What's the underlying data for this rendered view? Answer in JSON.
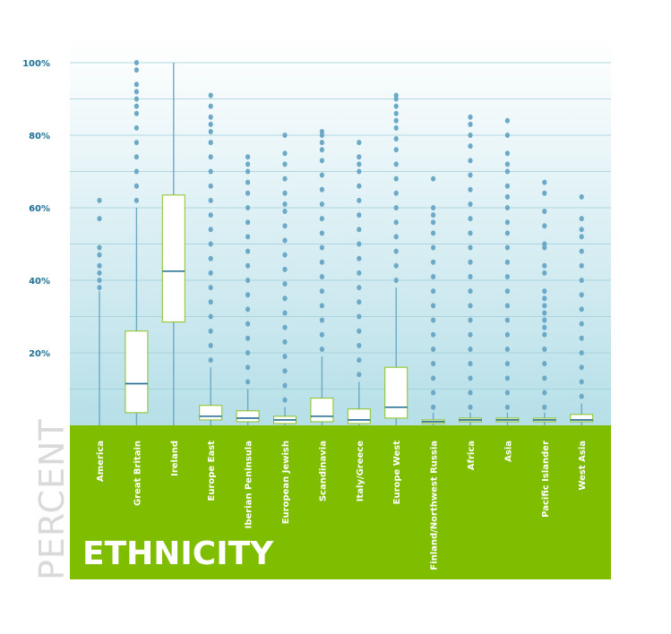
{
  "chart_data": {
    "type": "box",
    "xlabel": "ETHNICITY",
    "ylabel": "PERCENT",
    "ylim": [
      0,
      100
    ],
    "yticks": [
      20,
      40,
      60,
      80,
      100
    ],
    "ytick_labels": [
      "20%",
      "40%",
      "60%",
      "80%",
      "100%"
    ],
    "grid": true,
    "categories": [
      "America",
      "Great Britain",
      "Ireland",
      "Europe East",
      "Iberian Peninsula",
      "European Jewish",
      "Scandinavia",
      "Italy/Greece",
      "Europe West",
      "Finland/Northwest Russia",
      "Africa",
      "Asia",
      "Pacific Islander",
      "West Asia"
    ],
    "boxes": [
      {
        "q1": 0,
        "median": 0,
        "q3": 0,
        "whisker_low": 0,
        "whisker_high": 37,
        "outliers": [
          38,
          40,
          42,
          44,
          47,
          49,
          57,
          62
        ]
      },
      {
        "q1": 3.5,
        "median": 11.5,
        "q3": 26,
        "whisker_low": 0,
        "whisker_high": 60,
        "outliers": [
          62,
          66,
          70,
          74,
          78,
          82,
          86,
          88,
          90,
          92,
          94,
          98,
          100
        ]
      },
      {
        "q1": 28.5,
        "median": 42.5,
        "q3": 63.5,
        "whisker_low": 0,
        "whisker_high": 100,
        "outliers": []
      },
      {
        "q1": 1.5,
        "median": 2.5,
        "q3": 5.5,
        "whisker_low": 0,
        "whisker_high": 16,
        "outliers": [
          18,
          22,
          26,
          30,
          34,
          38,
          42,
          46,
          50,
          54,
          58,
          62,
          66,
          70,
          74,
          78,
          81,
          83,
          85,
          88,
          91
        ]
      },
      {
        "q1": 1,
        "median": 2,
        "q3": 4,
        "whisker_low": 0,
        "whisker_high": 10,
        "outliers": [
          12,
          16,
          20,
          24,
          28,
          32,
          36,
          40,
          44,
          48,
          52,
          56,
          60,
          64,
          67,
          70,
          72,
          74
        ]
      },
      {
        "q1": 0.5,
        "median": 1.5,
        "q3": 2.5,
        "whisker_low": 0,
        "whisker_high": 5,
        "outliers": [
          7,
          11,
          15,
          19,
          23,
          27,
          31,
          35,
          39,
          43,
          47,
          51,
          55,
          59,
          61,
          64,
          68,
          72,
          75,
          80
        ]
      },
      {
        "q1": 1,
        "median": 2.5,
        "q3": 7.5,
        "whisker_low": 0,
        "whisker_high": 19,
        "outliers": [
          21,
          25,
          29,
          33,
          37,
          41,
          45,
          49,
          53,
          57,
          61,
          65,
          69,
          73,
          76,
          78,
          80,
          81
        ]
      },
      {
        "q1": 0.5,
        "median": 1.5,
        "q3": 4.5,
        "whisker_low": 0,
        "whisker_high": 12,
        "outliers": [
          14,
          18,
          22,
          26,
          30,
          34,
          38,
          42,
          46,
          50,
          54,
          58,
          62,
          66,
          70,
          72,
          74,
          78
        ]
      },
      {
        "q1": 2,
        "median": 5,
        "q3": 16,
        "whisker_low": 0,
        "whisker_high": 38,
        "outliers": [
          40,
          44,
          48,
          52,
          56,
          60,
          64,
          68,
          72,
          76,
          79,
          82,
          84,
          86,
          88,
          90,
          91
        ]
      },
      {
        "q1": 0.5,
        "median": 1,
        "q3": 1.5,
        "whisker_low": 0,
        "whisker_high": 3.5,
        "outliers": [
          5,
          9,
          13,
          17,
          21,
          25,
          29,
          33,
          37,
          41,
          45,
          49,
          53,
          56,
          58,
          60,
          68
        ]
      },
      {
        "q1": 1,
        "median": 1.5,
        "q3": 2,
        "whisker_low": 0,
        "whisker_high": 3.5,
        "outliers": [
          5,
          9,
          13,
          17,
          21,
          25,
          29,
          33,
          37,
          41,
          45,
          49,
          53,
          57,
          61,
          65,
          69,
          73,
          77,
          80,
          83,
          85
        ]
      },
      {
        "q1": 1,
        "median": 1.5,
        "q3": 2,
        "whisker_low": 0,
        "whisker_high": 3.5,
        "outliers": [
          5,
          9,
          13,
          17,
          21,
          25,
          29,
          33,
          37,
          41,
          45,
          49,
          53,
          56,
          60,
          63,
          66,
          70,
          72,
          75,
          80,
          84
        ]
      },
      {
        "q1": 1,
        "median": 1.5,
        "q3": 2,
        "whisker_low": 0,
        "whisker_high": 3.5,
        "outliers": [
          5,
          9,
          13,
          17,
          21,
          25,
          27,
          29,
          31,
          33,
          35,
          37,
          42,
          44,
          49,
          50,
          55,
          59,
          64,
          67
        ]
      },
      {
        "q1": 1,
        "median": 1.5,
        "q3": 3,
        "whisker_low": 0,
        "whisker_high": 6,
        "outliers": [
          8,
          12,
          16,
          20,
          24,
          28,
          32,
          36,
          40,
          44,
          48,
          52,
          54,
          57,
          63
        ]
      }
    ]
  },
  "colors": {
    "plot_top": "#ffffff",
    "plot_bottom": "#b6dfe8",
    "grid": "#9fcdd8",
    "whisker": "#6ba9c7",
    "outlier": "#6ba9c7",
    "box_fill": "#ffffff",
    "box_stroke": "#8cc21f",
    "median": "#1e6a91",
    "band": "#7fbd00",
    "ytick_text": "#1d6f93",
    "ylabel_text": "#d9d9d9",
    "category_text": "#ffffff"
  }
}
